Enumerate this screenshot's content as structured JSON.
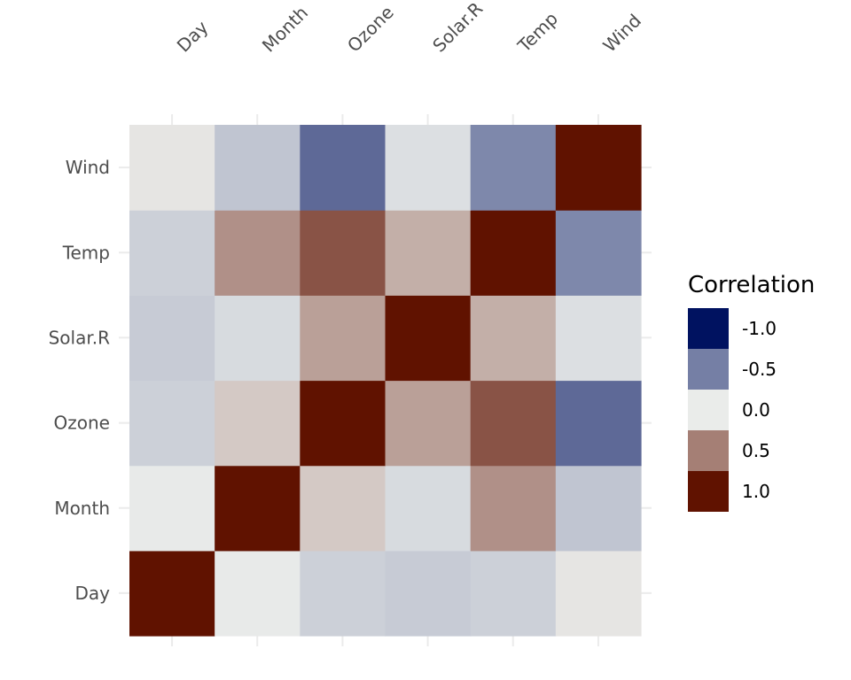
{
  "chart_data": {
    "type": "heatmap",
    "variables": [
      "Day",
      "Month",
      "Ozone",
      "Solar.R",
      "Temp",
      "Wind"
    ],
    "x": [
      "Day",
      "Month",
      "Ozone",
      "Solar.R",
      "Temp",
      "Wind"
    ],
    "y": [
      "Day",
      "Month",
      "Ozone",
      "Solar.R",
      "Temp",
      "Wind"
    ],
    "values": [
      [
        1.0,
        -0.01,
        -0.13,
        -0.15,
        -0.13,
        0.03
      ],
      [
        -0.01,
        1.0,
        0.16,
        -0.08,
        0.42,
        -0.18
      ],
      [
        -0.13,
        0.16,
        1.0,
        0.35,
        0.7,
        -0.6
      ],
      [
        -0.15,
        -0.08,
        0.35,
        1.0,
        0.28,
        -0.06
      ],
      [
        -0.13,
        0.42,
        0.7,
        0.28,
        1.0,
        -0.46
      ],
      [
        0.03,
        -0.18,
        -0.6,
        -0.06,
        -0.46,
        1.0
      ]
    ],
    "color_scale": {
      "low": "#001260",
      "mid": "#EAECEA",
      "high": "#601200",
      "domain": [
        -1.0,
        1.0
      ]
    },
    "legend": {
      "title": "Correlation",
      "placement": "right",
      "entries": [
        {
          "label": "-1.0",
          "value": -1.0
        },
        {
          "label": "-0.5",
          "value": -0.5
        },
        {
          "label": "0.0",
          "value": 0.0
        },
        {
          "label": "0.5",
          "value": 0.5
        },
        {
          "label": "1.0",
          "value": 1.0
        }
      ]
    },
    "x_axis_position": "top",
    "grid": true,
    "title": "",
    "xlabel": "",
    "ylabel": ""
  }
}
